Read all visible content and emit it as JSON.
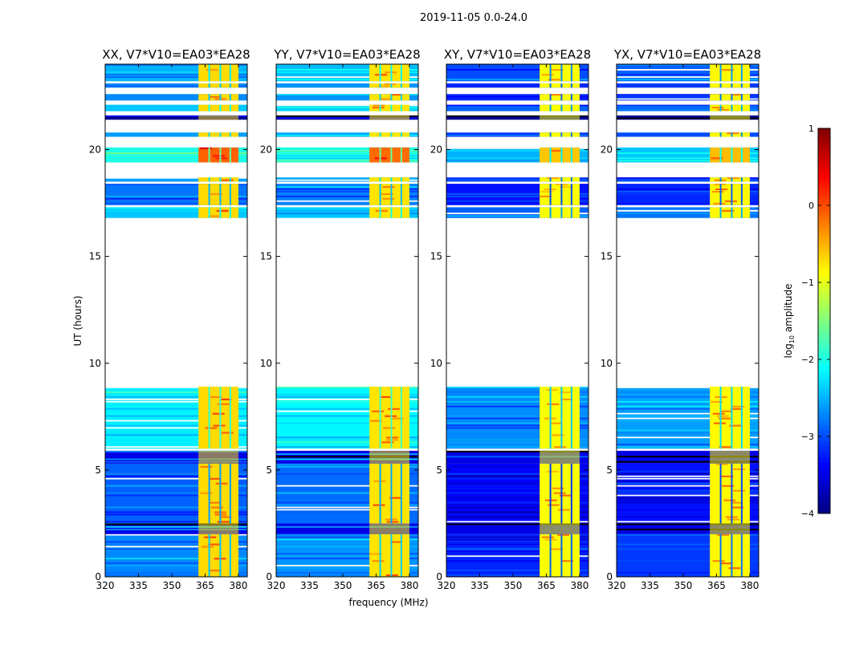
{
  "chart_data": {
    "type": "heatmap",
    "suptitle": "2019-11-05 0.0-24.0",
    "xlabel": "frequency (MHz)",
    "ylabel": "UT (hours)",
    "xlim": [
      320,
      384
    ],
    "ylim": [
      0,
      24
    ],
    "xticks": [
      320,
      335,
      350,
      365,
      380
    ],
    "xtick_labels": [
      "320",
      "335",
      "350",
      "365",
      "380"
    ],
    "yticks": [
      0,
      5,
      10,
      15,
      20
    ],
    "ytick_labels": [
      "0",
      "5",
      "10",
      "15",
      "20"
    ],
    "colormap": "jet",
    "colorbar": {
      "label_main": "log",
      "label_sub": "10",
      "label_rest": " amplitude",
      "range": [
        -4,
        1
      ],
      "ticks": [
        1,
        0,
        -1,
        -2,
        -3,
        -4
      ],
      "tick_labels": [
        "1",
        "0",
        "−1",
        "−2",
        "−3",
        "−4"
      ]
    },
    "panels": [
      {
        "title": "XX, V7*V10=EA03*EA28",
        "base_offset": 0,
        "band_value": -0.7
      },
      {
        "title": "YY, V7*V10=EA03*EA28",
        "base_offset": 0.05,
        "band_value": -0.75
      },
      {
        "title": "XY, V7*V10=EA03*EA28",
        "base_offset": -0.5,
        "band_value": -0.9
      },
      {
        "title": "YX, V7*V10=EA03*EA28",
        "base_offset": -0.4,
        "band_value": -0.85
      }
    ],
    "bright_band_mhz": [
      362,
      380
    ],
    "band_gaps_mhz": [
      366.5,
      371.5,
      376
    ],
    "segments_ut": [
      {
        "t0": 0.0,
        "t1": 2.0,
        "base": -2.7
      },
      {
        "t0": 2.0,
        "t1": 2.5,
        "base": -3.5,
        "flagged": true
      },
      {
        "t0": 2.5,
        "t1": 5.3,
        "base": -2.9
      },
      {
        "t0": 5.3,
        "t1": 5.9,
        "base": -3.5,
        "flagged": true
      },
      {
        "t0": 6.0,
        "t1": 8.9,
        "base": -2.2
      },
      {
        "t0": 16.8,
        "t1": 17.3,
        "base": -2.4
      },
      {
        "t0": 17.4,
        "t1": 18.4,
        "base": -2.8
      },
      {
        "t0": 18.5,
        "t1": 18.7,
        "base": -2.6
      },
      {
        "t0": 19.4,
        "t1": 20.1,
        "base": -2.0,
        "band_boost": 0.6
      },
      {
        "t0": 20.6,
        "t1": 20.8,
        "base": -2.6
      },
      {
        "t0": 21.4,
        "t1": 21.6,
        "base": -3.9,
        "flagged": true
      },
      {
        "t0": 21.8,
        "t1": 22.1,
        "base": -2.4
      },
      {
        "t0": 22.3,
        "t1": 22.6,
        "base": -2.7
      },
      {
        "t0": 22.9,
        "t1": 23.1,
        "base": -2.7
      },
      {
        "t0": 23.2,
        "t1": 24.0,
        "base": -2.5
      }
    ]
  }
}
